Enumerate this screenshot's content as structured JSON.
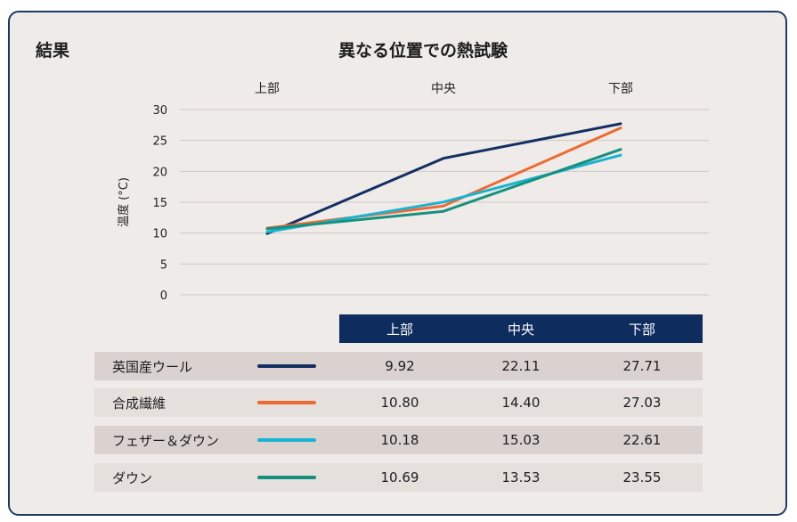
{
  "section_title": "結果",
  "chart_data": {
    "type": "line",
    "title": "異なる位置での熱試験",
    "xlabel": "",
    "ylabel": "温度 (°C)",
    "categories": [
      "上部",
      "中央",
      "下部"
    ],
    "ylim": [
      0,
      30
    ],
    "yticks": [
      0,
      5,
      10,
      15,
      20,
      25,
      30
    ],
    "grid": true,
    "series": [
      {
        "name": "英国産ウール",
        "color": "#132f63",
        "values": [
          9.92,
          22.11,
          27.71
        ]
      },
      {
        "name": "合成繊維",
        "color": "#ef6a32",
        "values": [
          10.8,
          14.4,
          27.03
        ]
      },
      {
        "name": "フェザー＆ダウン",
        "color": "#1ab3d2",
        "values": [
          10.18,
          15.03,
          22.61
        ]
      },
      {
        "name": "ダウン",
        "color": "#16907f",
        "values": [
          10.69,
          13.53,
          23.55
        ]
      }
    ]
  },
  "table": {
    "headers": [
      "上部",
      "中央",
      "下部"
    ],
    "rows": [
      {
        "name": "英国産ウール",
        "values": [
          "9.92",
          "22.11",
          "27.71"
        ]
      },
      {
        "name": "合成繊維",
        "values": [
          "10.80",
          "14.40",
          "27.03"
        ]
      },
      {
        "name": "フェザー＆ダウン",
        "values": [
          "10.18",
          "15.03",
          "22.61"
        ]
      },
      {
        "name": "ダウン",
        "values": [
          "10.69",
          "13.53",
          "23.55"
        ]
      }
    ]
  }
}
